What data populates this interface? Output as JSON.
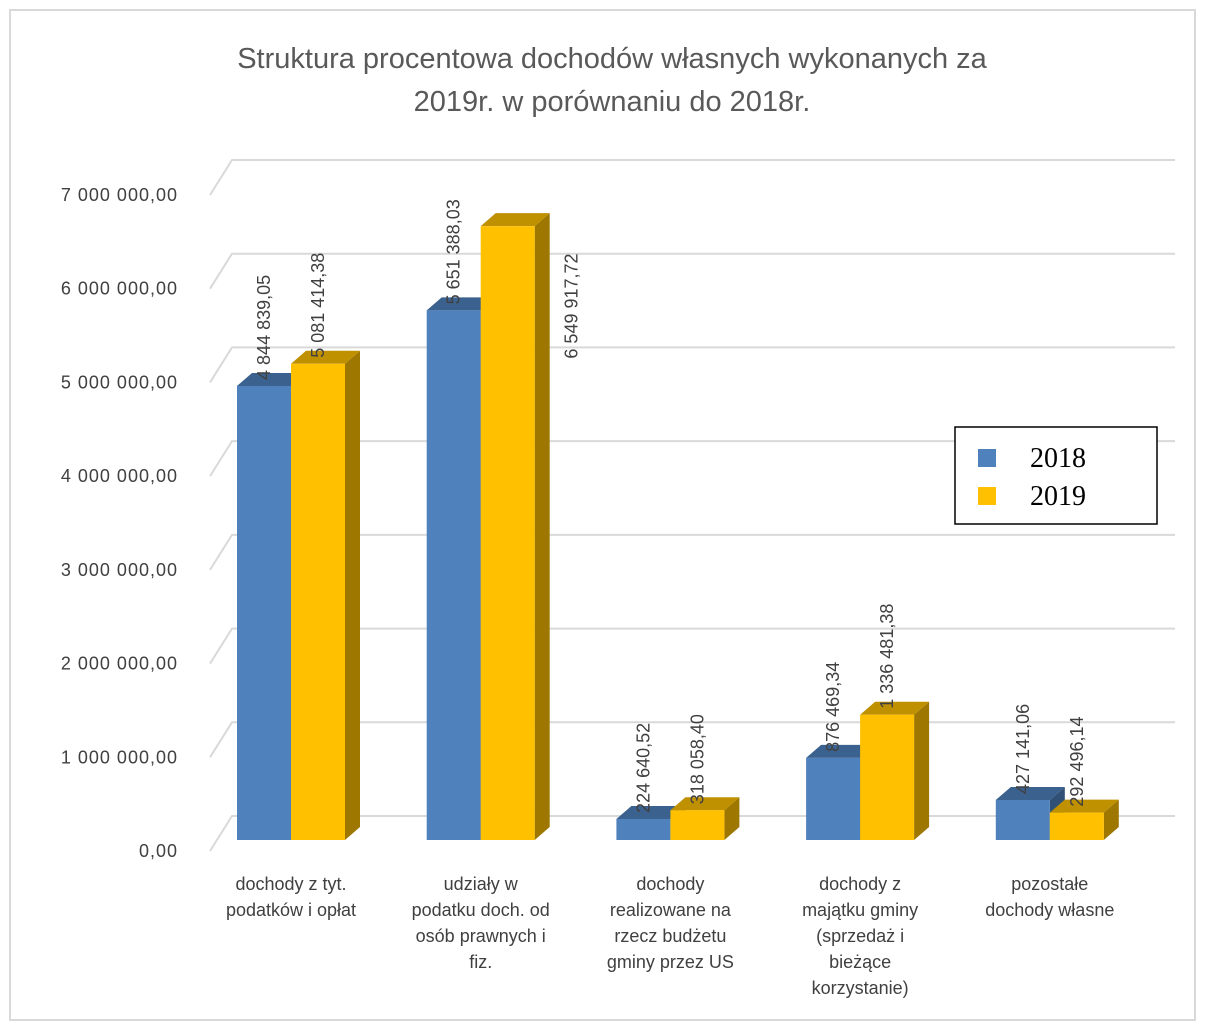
{
  "chart_data": {
    "type": "bar3d",
    "title": "Struktura procentowa dochodów własnych  wykonanych za 2019r. w porównaniu do 2018r.",
    "categories": [
      "dochody z tyt. podatków i opłat",
      "udziały w podatku doch. od osób prawnych i fiz.",
      "dochody realizowane na rzecz budżetu gminy przez US",
      "dochody z majątku gminy (sprzedaż i bieżące korzystanie)",
      "pozostałe dochody własne"
    ],
    "series": [
      {
        "name": "2018",
        "color": "#4f81bd",
        "values": [
          4844839.05,
          5651388.03,
          224640.52,
          876469.34,
          427141.06
        ],
        "value_labels": [
          "4 844 839,05",
          "5 651 388,03",
          "224 640,52",
          "876 469,34",
          "427 141,06"
        ]
      },
      {
        "name": "2019",
        "color": "#ffc000",
        "values": [
          5081414.38,
          6549917.72,
          318058.4,
          1336481.38,
          292496.14
        ],
        "value_labels": [
          "5 081 414,38",
          "6 549 917,72",
          "318 058,40",
          "1 336 481,38",
          "292 496,14"
        ]
      }
    ],
    "ylim": [
      0,
      7000000
    ],
    "yticks": [
      {
        "value": 0,
        "label": "0,00"
      },
      {
        "value": 1000000,
        "label": "1 000 000,00"
      },
      {
        "value": 2000000,
        "label": "2 000 000,00"
      },
      {
        "value": 3000000,
        "label": "3 000 000,00"
      },
      {
        "value": 4000000,
        "label": "4 000 000,00"
      },
      {
        "value": 5000000,
        "label": "5 000 000,00"
      },
      {
        "value": 6000000,
        "label": "6 000 000,00"
      },
      {
        "value": 7000000,
        "label": "7 000 000,00"
      }
    ],
    "grid": true,
    "legend": "right"
  }
}
